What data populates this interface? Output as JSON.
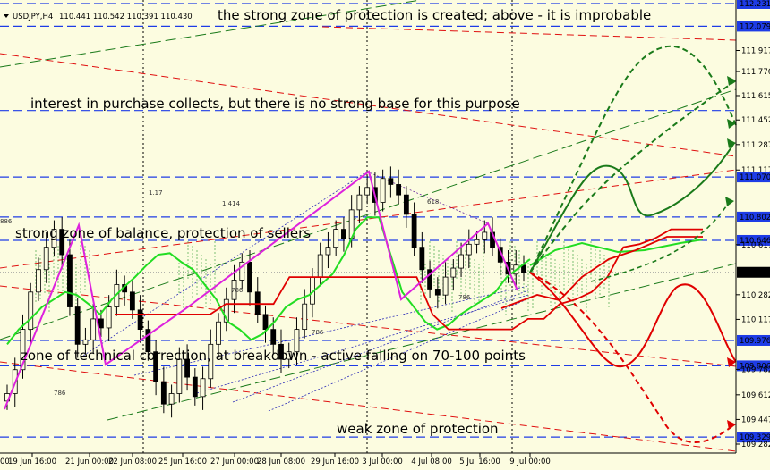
{
  "chart_data": {
    "type": "candlestick",
    "title": "USDJPY,H4",
    "ohlc": "110.441 110.542 110.391 110.430",
    "ylim": [
      109.282,
      112.231
    ],
    "price_ticks": [
      112.231,
      112.079,
      111.917,
      111.776,
      111.615,
      111.452,
      111.287,
      111.117,
      111.07,
      110.802,
      110.646,
      110.617,
      110.432,
      110.282,
      110.117,
      109.976,
      109.806,
      109.782,
      109.612,
      109.447,
      109.329,
      109.282
    ],
    "highlighted_levels": [
      {
        "price": 112.231,
        "color": "#1e3ce6"
      },
      {
        "price": 112.079,
        "color": "#1e3ce6"
      },
      {
        "price": 111.515,
        "color": "#1e3ce6"
      },
      {
        "price": 111.07,
        "color": "#1e3ce6"
      },
      {
        "price": 110.802,
        "color": "#1e3ce6"
      },
      {
        "price": 110.646,
        "color": "#1e3ce6"
      },
      {
        "price": 110.432,
        "color": "#000000"
      },
      {
        "price": 109.976,
        "color": "#1e3ce6"
      },
      {
        "price": 109.806,
        "color": "#1e3ce6"
      },
      {
        "price": 109.329,
        "color": "#1e3ce6"
      }
    ],
    "date_labels": [
      "19 Jun 16:00",
      "21 Jun 00:00",
      "22 Jun 08:00",
      "25 Jun 16:00",
      "27 Jun 00:00",
      "28 Jun 08:00",
      "29 Jun 16:00",
      "3 Jul 00:00",
      "4 Jul 08:00",
      "5 Jul 16:00",
      "9 Jul 00:00"
    ],
    "axis_edge_label": "00",
    "fib_labels": [
      "1.17",
      "1.414",
      "618",
      "886",
      "786",
      "786",
      "786",
      "786"
    ],
    "annotations": [
      "the strong zone of protection is created; above - it is improbable",
      "interest in purchase collects, but there is no strong base for this purpose",
      "strong zone of balance, protection of sellers",
      "zone of technical correction, at breakdown - active falling on 70-100 points",
      "weak zone of protection"
    ],
    "series": [
      {
        "kind": "candles",
        "closes": [
          109.62,
          109.78,
          110.05,
          110.3,
          110.45,
          110.6,
          110.72,
          110.55,
          110.2,
          109.95,
          109.98,
          110.12,
          110.06,
          110.2,
          110.35,
          110.3,
          110.18,
          110.05,
          109.9,
          109.7,
          109.55,
          109.62,
          109.85,
          109.73,
          109.6,
          109.72,
          109.95,
          110.1,
          110.25,
          110.38,
          110.5,
          110.3,
          110.15,
          110.05,
          109.95,
          109.85,
          109.9,
          110.05,
          110.22,
          110.4,
          110.55,
          110.6,
          110.72,
          110.66,
          110.85,
          110.95,
          111.0,
          110.9,
          111.06,
          111.02,
          110.95,
          110.82,
          110.6,
          110.45,
          110.32,
          110.28,
          110.4,
          110.46,
          110.55,
          110.62,
          110.65,
          110.7,
          110.6,
          110.5,
          110.42,
          110.48,
          110.43
        ]
      },
      {
        "kind": "green-line",
        "values": [
          109.95,
          110.05,
          110.12,
          110.2,
          110.25,
          110.3,
          110.28,
          110.22,
          110.15,
          110.25,
          110.33,
          110.4,
          110.48,
          110.55,
          110.56,
          110.5,
          110.45,
          110.35,
          110.25,
          110.1,
          110.05,
          109.98,
          110.02,
          110.1,
          110.2,
          110.25,
          110.28,
          110.35,
          110.42,
          110.55,
          110.72,
          110.8,
          110.8,
          110.55,
          110.3,
          110.2,
          110.1,
          110.05,
          110.08,
          110.15,
          110.2,
          110.25,
          110.3,
          110.4,
          110.46,
          110.52
        ]
      },
      {
        "kind": "red-line",
        "values": [
          110.15,
          110.15,
          110.15,
          110.15,
          110.15,
          110.15,
          110.15,
          110.22,
          110.22,
          110.22,
          110.22,
          110.4,
          110.4,
          110.4,
          110.4,
          110.4,
          110.4,
          110.4,
          110.4,
          110.4,
          110.15,
          110.05,
          110.05,
          110.05,
          110.05,
          110.05,
          110.12,
          110.12,
          110.22,
          110.25,
          110.3,
          110.4,
          110.6,
          110.62,
          110.66,
          110.72,
          110.72,
          110.72
        ]
      }
    ]
  }
}
